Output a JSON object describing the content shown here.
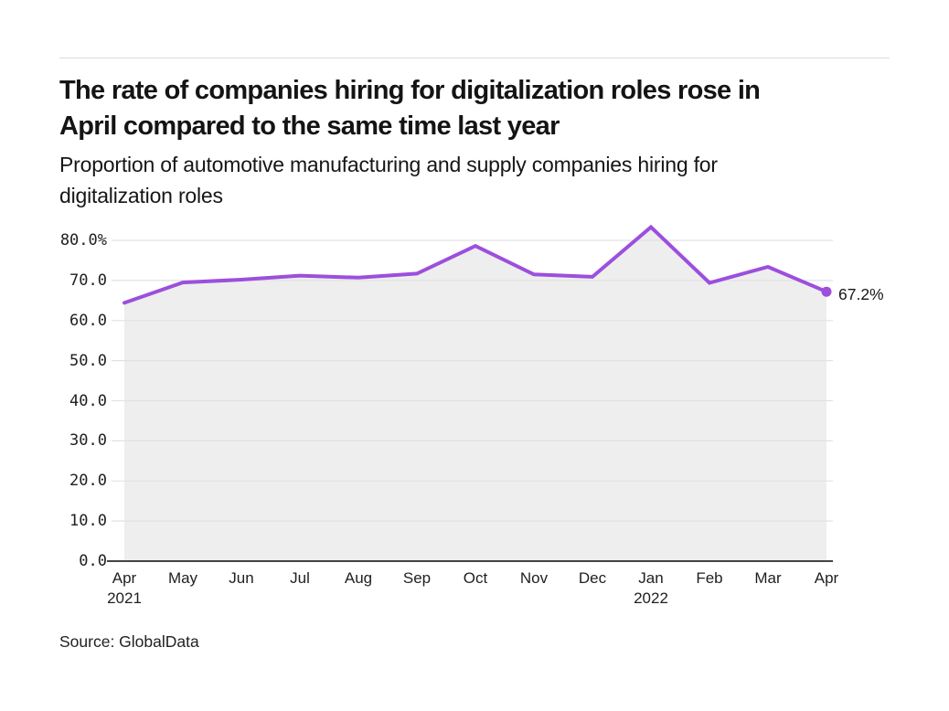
{
  "header": {
    "title_lines": [
      "The rate of companies hiring for digitalization roles rose in",
      "April compared to the same time last year"
    ],
    "subtitle_lines": [
      "Proportion of automotive manufacturing and supply companies hiring for",
      "digitalization roles"
    ]
  },
  "footer": {
    "source": "Source: GlobalData"
  },
  "chart_data": {
    "type": "area",
    "title": "The rate of companies hiring for digitalization roles rose in April compared to the same time last year",
    "subtitle": "Proportion of automotive manufacturing and supply companies hiring for digitalization roles",
    "categories": [
      "Apr",
      "May",
      "Jun",
      "Jul",
      "Aug",
      "Sep",
      "Oct",
      "Nov",
      "Dec",
      "Jan",
      "Feb",
      "Mar",
      "Apr"
    ],
    "year_labels": [
      {
        "index": 0,
        "label": "2021"
      },
      {
        "index": 9,
        "label": "2022"
      }
    ],
    "values": [
      64.4,
      69.5,
      70.2,
      71.2,
      70.7,
      71.7,
      78.6,
      71.5,
      70.9,
      83.3,
      69.4,
      73.4,
      67.2
    ],
    "ylim": [
      0,
      80
    ],
    "yticks": [
      0,
      10,
      20,
      30,
      40,
      50,
      60,
      70,
      80
    ],
    "ytick_labels": [
      "0.0",
      "10.0",
      "20.0",
      "30.0",
      "40.0",
      "50.0",
      "60.0",
      "70.0",
      "80.0%"
    ],
    "end_label": "67.2%",
    "grid": true,
    "legend": false,
    "line_color": "#9c4fdd",
    "fill_color": "#eeeeee",
    "grid_color": "#e2e2e2",
    "axis_color": "#444444"
  }
}
